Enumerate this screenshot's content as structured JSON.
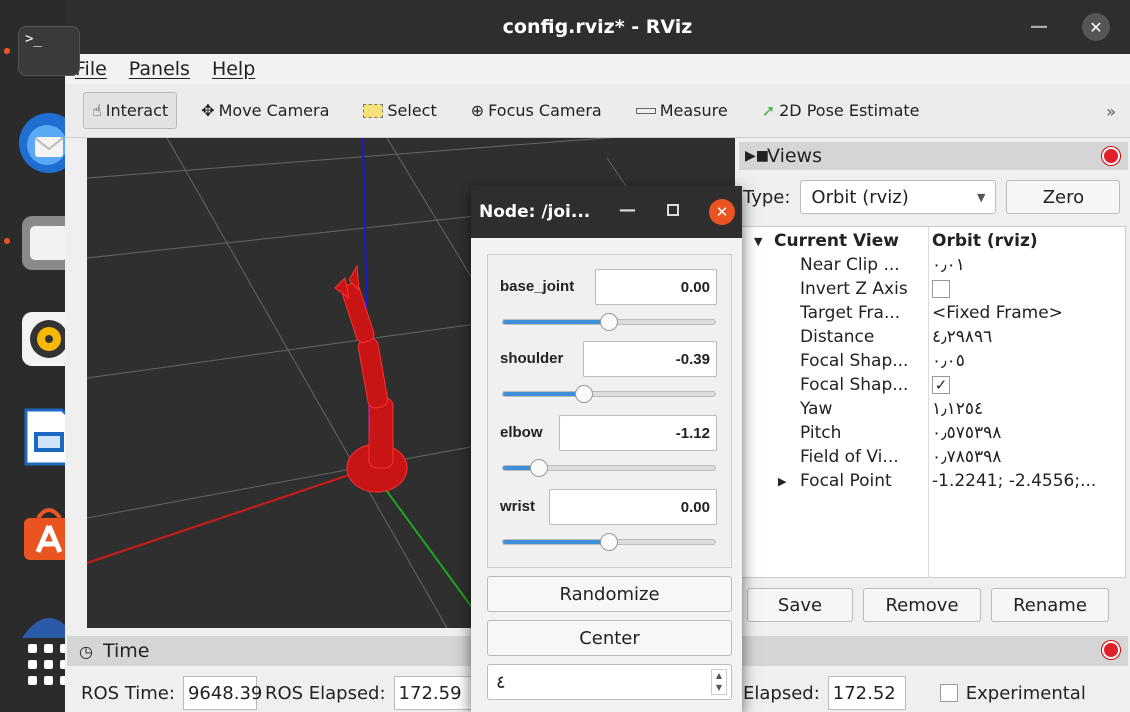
{
  "window": {
    "title": "config.rviz* - RViz"
  },
  "menu": [
    "File",
    "Panels",
    "Help"
  ],
  "toolbar": {
    "interact": "Interact",
    "move_camera": "Move Camera",
    "select": "Select",
    "focus_camera": "Focus Camera",
    "measure": "Measure",
    "pose_estimate": "2D Pose Estimate",
    "more": "»"
  },
  "views": {
    "title": "Views",
    "type_label": "Type:",
    "type_value": "Orbit (rviz)",
    "zero_label": "Zero",
    "tree": [
      {
        "key": "Current View",
        "value": "Orbit (rviz)",
        "bold": true
      },
      {
        "key": "Near Clip ...",
        "value": "٠٫٠١"
      },
      {
        "key": "Invert Z Axis",
        "value": "",
        "checkbox": "unchecked"
      },
      {
        "key": "Target Fra...",
        "value": "<Fixed Frame>"
      },
      {
        "key": "Distance",
        "value": "٤٫٢٩٨٩٦"
      },
      {
        "key": "Focal Shap...",
        "value": "٠٫٠٥"
      },
      {
        "key": "Focal Shap...",
        "value": "",
        "checkbox": "checked"
      },
      {
        "key": "Yaw",
        "value": "١٫١٢٥٤"
      },
      {
        "key": "Pitch",
        "value": "٠٫٥٧٥٣٩٨"
      },
      {
        "key": "Field of Vi...",
        "value": "٠٫٧٨٥٣٩٨"
      },
      {
        "key": "Focal Point",
        "value": "-1.2241; -2.4556;..."
      }
    ],
    "buttons": [
      "Save",
      "Remove",
      "Rename"
    ]
  },
  "time": {
    "title": "Time",
    "ros_time_label": "ROS Time:",
    "ros_time_value": "9648.39",
    "ros_elapsed_label": "ROS Elapsed:",
    "ros_elapsed_value": "172.59",
    "wall_elapsed_label": "Elapsed:",
    "wall_elapsed_value": "172.52",
    "experimental_label": "Experimental"
  },
  "node": {
    "title": "Node: /joi...",
    "joints": [
      {
        "name": "base_joint",
        "value": "0.00",
        "slider": 0.5
      },
      {
        "name": "shoulder",
        "value": "-0.39",
        "slider": 0.38
      },
      {
        "name": "elbow",
        "value": "-1.12",
        "slider": 0.17
      },
      {
        "name": "wrist",
        "value": "0.00",
        "slider": 0.5
      }
    ],
    "randomize_label": "Randomize",
    "center_label": "Center",
    "spin_value": "٤"
  },
  "terminal_prompt": ">_",
  "colors": {
    "dock_bg": "#2b2b2b",
    "title_bg": "#2e2e2e",
    "accent_orange": "#e95420",
    "slider_fill": "#3d8fd9"
  }
}
